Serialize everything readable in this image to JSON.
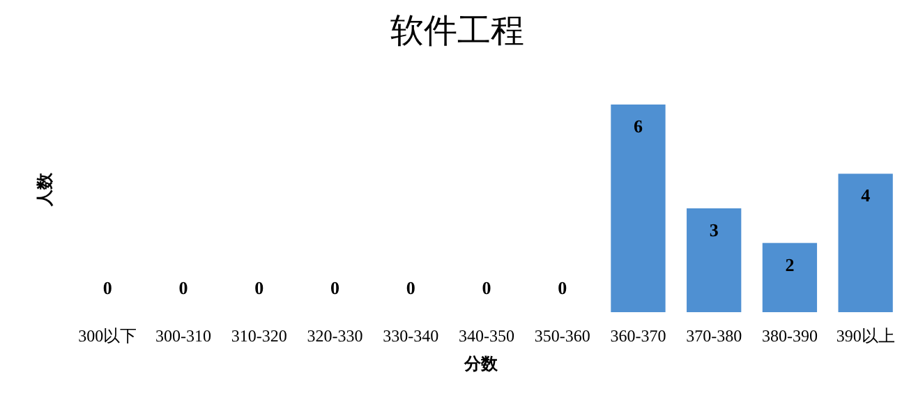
{
  "chart_data": {
    "type": "bar",
    "title": "软件工程",
    "xlabel": "分数",
    "ylabel": "人数",
    "categories": [
      "300以下",
      "300-310",
      "310-320",
      "320-330",
      "330-340",
      "340-350",
      "350-360",
      "360-370",
      "370-380",
      "380-390",
      "390以上"
    ],
    "values": [
      0,
      0,
      0,
      0,
      0,
      0,
      0,
      6,
      3,
      2,
      4
    ],
    "color": "#4f90d2",
    "data_labels": true
  }
}
